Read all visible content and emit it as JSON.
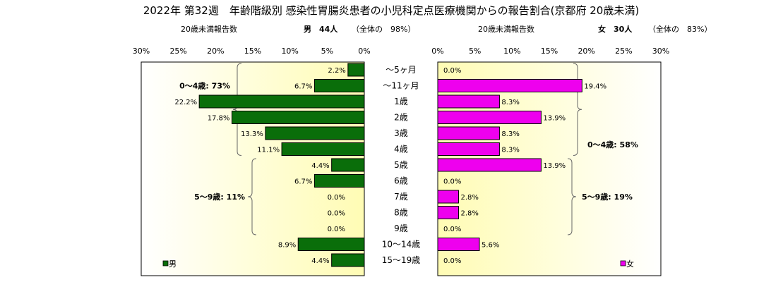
{
  "title": "2022年 第32週　年齢階級別 感染性胃腸炎患者の小児科定点医療機関からの報告割合(京都府 20歳未満)",
  "male_header": {
    "label": "20歳未満報告数",
    "sex_count": "男　44人",
    "share": "（全体の　98%）"
  },
  "female_header": {
    "label": "20歳未満報告数",
    "sex_count": "女　30人",
    "share": "（全体の　83%）"
  },
  "legend": {
    "male": "男",
    "female": "女"
  },
  "colors": {
    "male": "#0a6e0a",
    "female": "#ee00ee",
    "bg_yellow": "#fffcb4"
  },
  "chart_data": {
    "type": "bar",
    "orientation": "horizontal",
    "layout": "population-pyramid",
    "categories": [
      "～5ヶ月",
      "～11ヶ月",
      "1歳",
      "2歳",
      "3歳",
      "4歳",
      "5歳",
      "6歳",
      "7歳",
      "8歳",
      "9歳",
      "10～14歳",
      "15～19歳"
    ],
    "x_ticks": [
      "30%",
      "25%",
      "20%",
      "15%",
      "10%",
      "5%",
      "0%"
    ],
    "xlim": [
      0,
      30
    ],
    "series": [
      {
        "name": "男",
        "values": [
          2.2,
          6.7,
          22.2,
          17.8,
          13.3,
          11.1,
          4.4,
          6.7,
          0.0,
          0.0,
          0.0,
          8.9,
          4.4
        ],
        "labels": [
          "2.2%",
          "6.7%",
          "22.2%",
          "17.8%",
          "13.3%",
          "11.1%",
          "4.4%",
          "6.7%",
          "0.0%",
          "0.0%",
          "0.0%",
          "8.9%",
          "4.4%"
        ]
      },
      {
        "name": "女",
        "values": [
          0.0,
          19.4,
          8.3,
          13.9,
          8.3,
          8.3,
          13.9,
          0.0,
          2.8,
          2.8,
          0.0,
          5.6,
          0.0
        ],
        "labels": [
          "0.0%",
          "19.4%",
          "8.3%",
          "13.9%",
          "8.3%",
          "8.3%",
          "13.9%",
          "0.0%",
          "2.8%",
          "2.8%",
          "0.0%",
          "5.6%",
          "0.0%"
        ]
      }
    ],
    "annotations": {
      "male": [
        {
          "text": "0～4歳: 73%",
          "from": 0,
          "to": 5
        },
        {
          "text": "5～9歳: 11%",
          "from": 6,
          "to": 10
        }
      ],
      "female": [
        {
          "text": "0～4歳: 58%",
          "from": 0,
          "to": 5
        },
        {
          "text": "5～9歳: 19%",
          "from": 6,
          "to": 10
        }
      ]
    }
  }
}
